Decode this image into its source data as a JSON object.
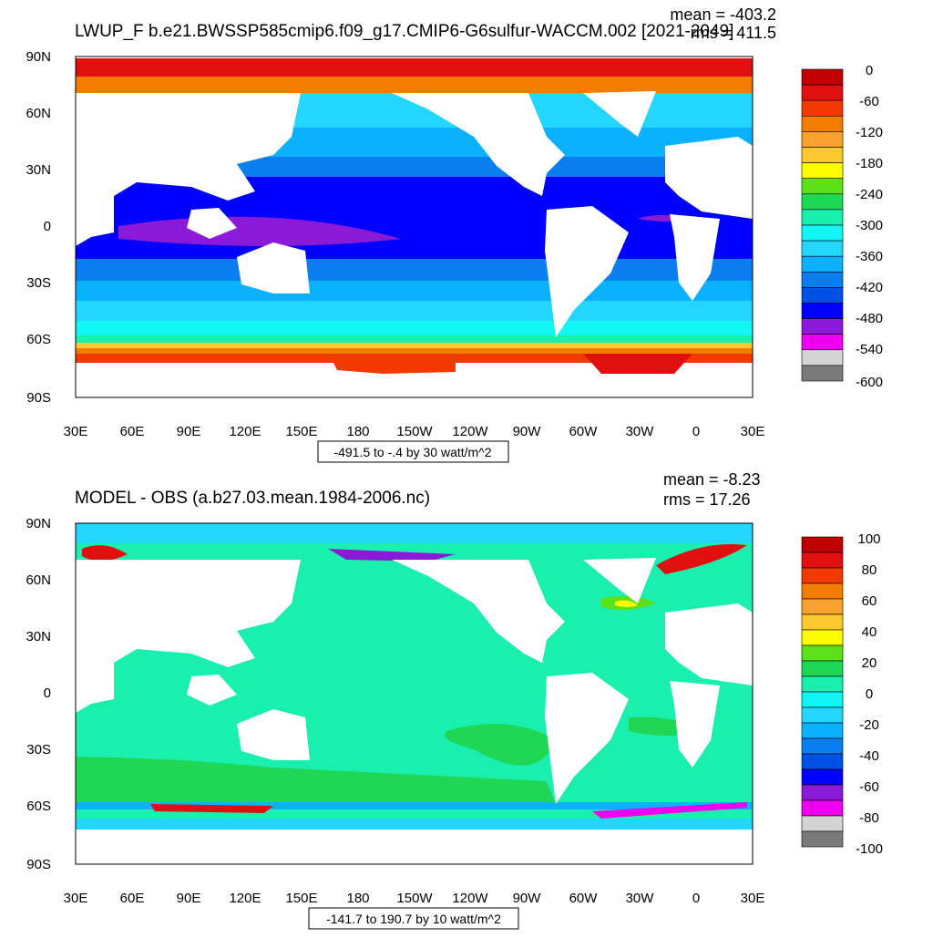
{
  "chart_data": [
    {
      "type": "heatmap",
      "map": "global filled-contour map, ocean only",
      "title": "LWUP_F b.e21.BWSSP585cmip6.f09_g17.CMIP6-G6sulfur-WACCM.002 [2021-2049]",
      "stats": {
        "mean": "mean = -403.2",
        "rms": "rms = 411.5"
      },
      "x_ticks": [
        "30E",
        "60E",
        "90E",
        "120E",
        "150E",
        "180",
        "150W",
        "120W",
        "90W",
        "60W",
        "30W",
        "0",
        "30E"
      ],
      "y_ticks": [
        "90N",
        "60N",
        "30N",
        "0",
        "30S",
        "60S",
        "90S"
      ],
      "colorbar_labels": [
        "0",
        "-60",
        "-120",
        "-180",
        "-240",
        "-300",
        "-360",
        "-420",
        "-480",
        "-540",
        "-600"
      ],
      "colorbar_colors": [
        "#c00000",
        "#e01010",
        "#f23a00",
        "#f47d00",
        "#f8a030",
        "#fcc830",
        "#fdfd00",
        "#5ce01a",
        "#1fd655",
        "#19f0b0",
        "#12f5f5",
        "#22d6ff",
        "#0ab1ff",
        "#0a7df0",
        "#0050e6",
        "#0000ff",
        "#8a1ad7",
        "#ee00ee",
        "#d4d4d4",
        "#7a7a7a"
      ],
      "range_label": "-491.5 to -.4 by 30 watt/m^2"
    },
    {
      "type": "heatmap",
      "map": "global filled-contour map, ocean only",
      "title": "MODEL - OBS (a.b27.03.mean.1984-2006.nc)",
      "stats": {
        "mean": "mean = -8.23",
        "rms": "rms = 17.26"
      },
      "x_ticks": [
        "30E",
        "60E",
        "90E",
        "120E",
        "150E",
        "180",
        "150W",
        "120W",
        "90W",
        "60W",
        "30W",
        "0",
        "30E"
      ],
      "y_ticks": [
        "90N",
        "60N",
        "30N",
        "0",
        "30S",
        "60S",
        "90S"
      ],
      "colorbar_labels": [
        "100",
        "80",
        "60",
        "40",
        "20",
        "0",
        "-20",
        "-40",
        "-60",
        "-80",
        "-100"
      ],
      "colorbar_colors": [
        "#c00000",
        "#e01010",
        "#f23a00",
        "#f47d00",
        "#f8a030",
        "#fcc830",
        "#fdfd00",
        "#5ce01a",
        "#1fd655",
        "#19f0b0",
        "#12f5f5",
        "#22d6ff",
        "#0ab1ff",
        "#0a7df0",
        "#0050e6",
        "#0000ff",
        "#8a1ad7",
        "#ee00ee",
        "#d4d4d4",
        "#7a7a7a"
      ],
      "range_label": "-141.7 to 190.7 by 10 watt/m^2"
    }
  ]
}
